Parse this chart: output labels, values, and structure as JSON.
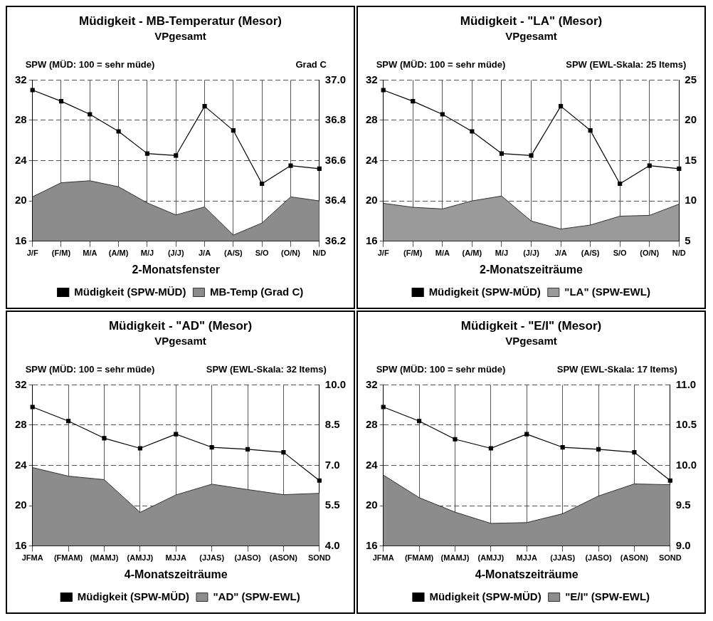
{
  "chart_data": [
    {
      "type": "line",
      "title": "Müdigkeit - MB-Temperatur (Mesor)",
      "subtitle": "VPgesamt",
      "xlabel": "2-Monatsfenster",
      "ylabel": "SPW (MÜD: 100 = sehr müde)",
      "y2label": "Grad C",
      "categories": [
        "J/F",
        "(F/M)",
        "M/A",
        "(A/M)",
        "M/J",
        "(J/J)",
        "J/A",
        "(A/S)",
        "S/O",
        "(O/N)",
        "N/D"
      ],
      "series": [
        {
          "name": "Müdigkeit (SPW-MÜD)",
          "marker": "square",
          "color": "#000000",
          "values": [
            31.0,
            29.9,
            28.6,
            26.9,
            24.7,
            24.5,
            29.4,
            27.0,
            21.7,
            23.5,
            23.2
          ]
        },
        {
          "name": "MB-Temp (Grad C)",
          "type": "area",
          "axis": "y2",
          "color": "#8c8c8c",
          "values": [
            36.42,
            36.49,
            36.5,
            36.47,
            36.39,
            36.33,
            36.37,
            36.23,
            36.29,
            36.42,
            36.4
          ]
        }
      ],
      "ylim": [
        16,
        32
      ],
      "yticks": [
        16,
        20,
        24,
        28,
        32
      ],
      "y2lim": [
        36.2,
        37.0
      ],
      "y2ticks": [
        36.2,
        36.4,
        36.6,
        36.8,
        {
          "value": 37,
          "label": "37.0"
        }
      ],
      "grid": true,
      "legend": "bottom",
      "line_style": "solid"
    },
    {
      "type": "line",
      "title": "Müdigkeit - \"LA\" (Mesor)",
      "subtitle": "VPgesamt",
      "xlabel": "2-Monatszeiträume",
      "ylabel": "SPW (MÜD: 100 = sehr müde)",
      "y2label": "SPW (EWL-Skala: 25 Items)",
      "categories": [
        "J/F",
        "(F/M)",
        "M/A",
        "(A/M)",
        "M/J",
        "(J/J)",
        "J/A",
        "(A/S)",
        "S/O",
        "(O/N)",
        "N/D"
      ],
      "series": [
        {
          "name": "Müdigkeit (SPW-MÜD)",
          "marker": "square",
          "color": "#000000",
          "values": [
            31.0,
            29.9,
            28.6,
            26.9,
            24.7,
            24.5,
            29.4,
            27.0,
            21.7,
            23.5,
            23.2
          ]
        },
        {
          "name": "\"LA\" (SPW-EWL)",
          "type": "area",
          "axis": "y2",
          "color": "#9a9a9a",
          "values": [
            9.7,
            9.2,
            9.0,
            10.0,
            10.6,
            7.5,
            6.5,
            7.0,
            8.1,
            8.2,
            9.6
          ]
        }
      ],
      "ylim": [
        16,
        32
      ],
      "yticks": [
        16,
        20,
        24,
        28,
        32
      ],
      "y2lim": [
        5,
        25
      ],
      "y2ticks": [
        5,
        10,
        15,
        20,
        25
      ],
      "grid": true,
      "legend": "bottom",
      "line_style": "solid"
    },
    {
      "type": "line",
      "title": "Müdigkeit - \"AD\" (Mesor)",
      "subtitle": "VPgesamt",
      "xlabel": "4-Monatszeiträume",
      "ylabel": "SPW (MÜD: 100 = sehr müde)",
      "y2label": "SPW (EWL-Skala: 32 Items)",
      "categories": [
        "JFMA",
        "(FMAM)",
        "(MAMJ)",
        "(AMJJ)",
        "MJJA",
        "(JJAS)",
        "(JASO)",
        "(ASON)",
        "SOND"
      ],
      "series": [
        {
          "name": "Müdigkeit (SPW-MÜD)",
          "marker": "square",
          "color": "#000000",
          "values": [
            29.8,
            28.4,
            26.7,
            25.7,
            27.1,
            25.8,
            25.6,
            25.3,
            22.5
          ]
        },
        {
          "name": "\"AD\" (SPW-EWL)",
          "type": "area",
          "axis": "y2",
          "color": "#8c8c8c",
          "values": [
            6.92,
            6.6,
            6.47,
            5.25,
            5.9,
            6.3,
            6.1,
            5.91,
            5.96
          ]
        }
      ],
      "ylim": [
        16,
        32
      ],
      "yticks": [
        16,
        20,
        24,
        28,
        32
      ],
      "y2lim": [
        4,
        10
      ],
      "y2ticks": [
        {
          "value": 4,
          "label": "4.0"
        },
        5.5,
        {
          "value": 7,
          "label": "7.0"
        },
        8.5,
        {
          "value": 10,
          "label": "10.0"
        }
      ],
      "grid": true,
      "legend": "bottom",
      "line_style": "solid"
    },
    {
      "type": "line",
      "title": "Müdigkeit - \"E/I\" (Mesor)",
      "subtitle": "VPgesamt",
      "xlabel": "4-Monatszeiträume",
      "ylabel": "SPW (MÜD: 100 = sehr müde)",
      "y2label": "SPW (EWL-Skala: 17 Items)",
      "categories": [
        "JFMA",
        "(FMAM)",
        "(MAMJ)",
        "(AMJJ)",
        "MJJA",
        "(JJAS)",
        "(JASO)",
        "(ASON)",
        "SOND"
      ],
      "series": [
        {
          "name": "Müdigkeit (SPW-MÜD)",
          "marker": "square",
          "color": "#000000",
          "values": [
            29.8,
            28.4,
            26.6,
            25.7,
            27.1,
            25.8,
            25.6,
            25.3,
            22.5
          ]
        },
        {
          "name": "\"E/I\" (SPW-EWL)",
          "type": "area",
          "axis": "y2",
          "color": "#8c8c8c",
          "values": [
            9.88,
            9.6,
            9.42,
            9.28,
            9.29,
            9.4,
            9.62,
            9.77,
            9.76
          ]
        }
      ],
      "ylim": [
        16,
        32
      ],
      "yticks": [
        16,
        20,
        24,
        28,
        32
      ],
      "y2lim": [
        9,
        11
      ],
      "y2ticks": [
        {
          "value": 9,
          "label": "9.0"
        },
        9.5,
        {
          "value": 10,
          "label": "10.0"
        },
        10.5,
        {
          "value": 11,
          "label": "11.0"
        }
      ],
      "grid": true,
      "legend": "bottom",
      "line_style": "solid"
    }
  ]
}
